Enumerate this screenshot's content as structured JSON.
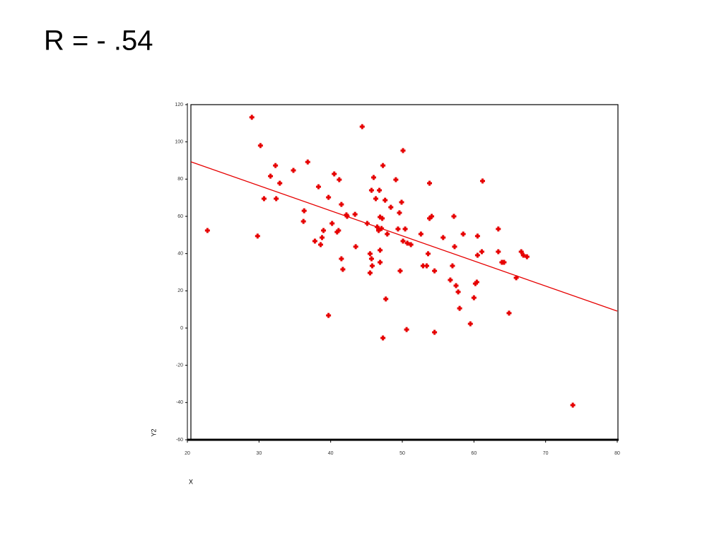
{
  "chart_data": {
    "type": "scatter",
    "title": "R = - .54",
    "xlabel": "X",
    "ylabel": "Y2",
    "color": "#e60000",
    "x": [
      22.8,
      29.0,
      30.2,
      29.8,
      30.7,
      31.6,
      32.3,
      32.4,
      32.9,
      34.8,
      36.2,
      36.3,
      36.8,
      37.8,
      38.3,
      38.6,
      38.8,
      39.0,
      39.7,
      39.7,
      40.2,
      40.5,
      40.9,
      41.1,
      41.2,
      41.5,
      41.5,
      41.7,
      42.2,
      42.3,
      43.4,
      43.5,
      44.4,
      45.1,
      45.5,
      45.5,
      45.7,
      45.7,
      45.8,
      46.0,
      46.3,
      46.5,
      46.7,
      46.8,
      46.9,
      46.9,
      46.9,
      47.1,
      47.2,
      47.3,
      47.3,
      47.6,
      47.7,
      47.9,
      48.4,
      49.1,
      49.4,
      49.6,
      49.7,
      49.9,
      50.1,
      50.1,
      50.4,
      50.6,
      50.7,
      51.2,
      52.6,
      52.9,
      53.4,
      53.6,
      53.8,
      53.8,
      54.1,
      54.5,
      54.5,
      55.7,
      56.7,
      57.0,
      57.2,
      57.3,
      57.5,
      57.8,
      58.0,
      58.5,
      59.5,
      60.0,
      60.2,
      60.4,
      60.5,
      60.5,
      61.1,
      61.2,
      63.4,
      63.4,
      63.9,
      64.2,
      64.9,
      65.9,
      66.6,
      66.9,
      67.4,
      73.8
    ],
    "values": [
      52.4,
      113.2,
      98.0,
      49.4,
      69.5,
      81.6,
      87.3,
      69.5,
      77.8,
      84.7,
      57.3,
      63.0,
      89.2,
      46.7,
      75.9,
      44.8,
      48.6,
      52.4,
      70.2,
      6.8,
      56.2,
      82.8,
      51.6,
      52.4,
      79.7,
      66.4,
      37.2,
      31.5,
      60.8,
      60.0,
      61.1,
      43.7,
      108.2,
      56.2,
      39.9,
      29.6,
      74.0,
      37.2,
      33.4,
      80.9,
      69.5,
      54.3,
      52.4,
      74.0,
      59.6,
      35.3,
      41.8,
      53.5,
      58.9,
      -5.3,
      87.3,
      68.7,
      15.6,
      50.5,
      64.9,
      79.7,
      53.2,
      61.9,
      30.7,
      67.6,
      95.3,
      46.7,
      53.2,
      -0.8,
      45.6,
      44.8,
      50.5,
      33.4,
      33.4,
      39.9,
      77.8,
      58.9,
      60.0,
      -2.3,
      30.7,
      48.6,
      25.8,
      33.4,
      60.0,
      43.7,
      22.8,
      19.4,
      10.6,
      50.5,
      2.3,
      16.3,
      23.9,
      24.7,
      39.1,
      49.4,
      41.0,
      79.0,
      53.2,
      41.0,
      35.3,
      35.3,
      8.0,
      27.0,
      41.0,
      39.1,
      38.3,
      -41.4
    ],
    "trend_line": {
      "x": [
        20.5,
        80
      ],
      "y": [
        89.3,
        9.1
      ],
      "color": "#e60000"
    },
    "xlim": [
      20,
      80
    ],
    "xticks": [
      20,
      30,
      40,
      50,
      60,
      70,
      80
    ],
    "ylim": [
      -60,
      120
    ],
    "yticks": [
      -60,
      -40,
      -20,
      0,
      20,
      40,
      60,
      80,
      100,
      120
    ]
  }
}
